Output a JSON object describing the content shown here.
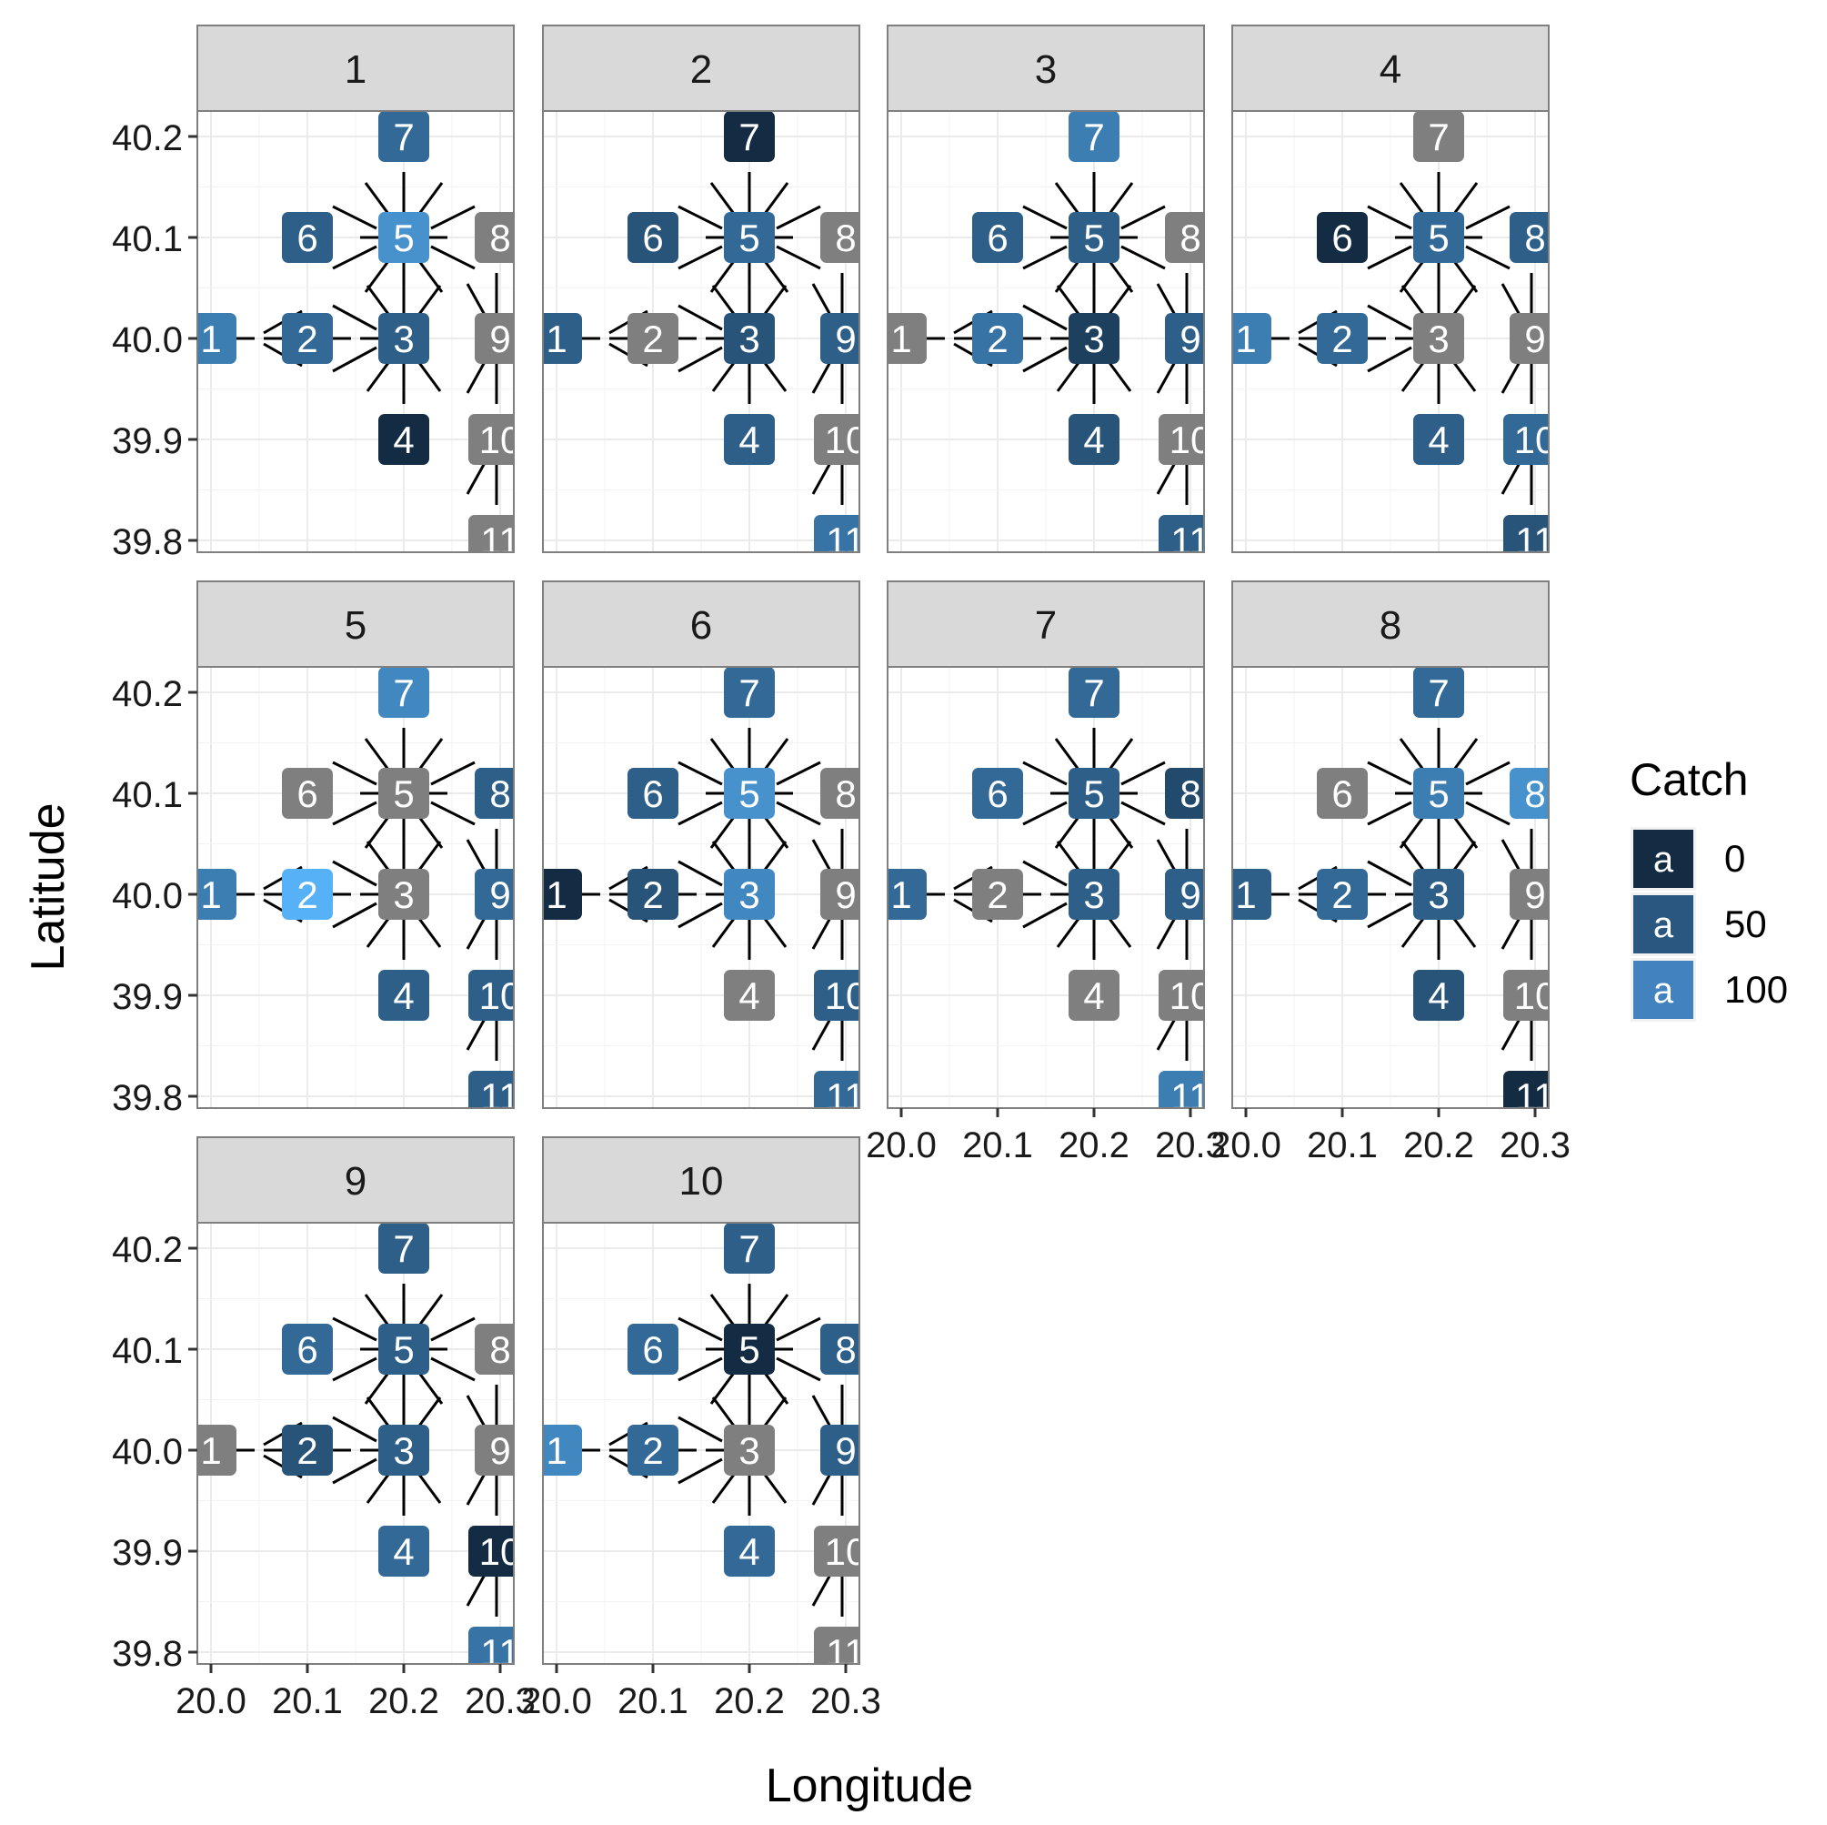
{
  "chart_data": {
    "type": "scatter",
    "subtype": "faceted label plot with network edges",
    "xlabel": "Longitude",
    "ylabel": "Latitude",
    "xlim": [
      19.985,
      20.315
    ],
    "ylim": [
      39.782,
      40.218
    ],
    "x_ticks": [
      20.0,
      20.1,
      20.2,
      20.3
    ],
    "x_tick_labels": [
      "20.0",
      "20.1",
      "20.2",
      "20.3"
    ],
    "y_ticks": [
      39.8,
      39.9,
      40.0,
      40.1,
      40.2
    ],
    "y_tick_labels": [
      "39.8",
      "39.9",
      "40.0",
      "40.1",
      "40.2"
    ],
    "grid": true,
    "legend": {
      "title": "Catch",
      "position": "right",
      "key_glyph": "a",
      "entries": [
        {
          "label": "0",
          "color": "#132b43"
        },
        {
          "label": "50",
          "color": "#2a5780"
        },
        {
          "label": "100",
          "color": "#4182bf"
        }
      ]
    },
    "colors": {
      "low": "#132b43",
      "high": "#56b1f7",
      "na": "#7f7f7f"
    },
    "nodes": [
      {
        "id": "1",
        "x": 20.0,
        "y": 40.0
      },
      {
        "id": "2",
        "x": 20.1,
        "y": 40.0
      },
      {
        "id": "3",
        "x": 20.2,
        "y": 40.0
      },
      {
        "id": "4",
        "x": 20.2,
        "y": 39.9
      },
      {
        "id": "5",
        "x": 20.2,
        "y": 40.1
      },
      {
        "id": "6",
        "x": 20.1,
        "y": 40.1
      },
      {
        "id": "7",
        "x": 20.2,
        "y": 40.2
      },
      {
        "id": "8",
        "x": 20.3,
        "y": 40.1
      },
      {
        "id": "9",
        "x": 20.3,
        "y": 40.0
      },
      {
        "id": "10",
        "x": 20.3,
        "y": 39.9
      },
      {
        "id": "11",
        "x": 20.3,
        "y": 39.8
      }
    ],
    "panels": [
      {
        "label": "1",
        "catch": [
          80,
          60,
          50,
          0,
          100,
          50,
          60,
          null,
          null,
          null,
          null
        ]
      },
      {
        "label": "2",
        "catch": [
          50,
          null,
          40,
          50,
          60,
          40,
          0,
          null,
          50,
          null,
          70
        ]
      },
      {
        "label": "3",
        "catch": [
          null,
          70,
          20,
          40,
          50,
          50,
          80,
          null,
          50,
          null,
          50
        ]
      },
      {
        "label": "4",
        "catch": [
          80,
          60,
          null,
          50,
          60,
          0,
          null,
          50,
          null,
          60,
          40
        ]
      },
      {
        "label": "5",
        "catch": [
          80,
          130,
          null,
          50,
          null,
          null,
          90,
          50,
          60,
          50,
          50
        ]
      },
      {
        "label": "6",
        "catch": [
          0,
          40,
          90,
          null,
          100,
          50,
          60,
          null,
          null,
          50,
          60
        ]
      },
      {
        "label": "7",
        "catch": [
          60,
          null,
          50,
          null,
          50,
          60,
          60,
          30,
          50,
          null,
          80
        ]
      },
      {
        "label": "8",
        "catch": [
          50,
          60,
          50,
          40,
          80,
          null,
          60,
          100,
          null,
          null,
          0
        ]
      },
      {
        "label": "9",
        "catch": [
          null,
          40,
          50,
          60,
          50,
          60,
          50,
          null,
          null,
          0,
          70
        ]
      },
      {
        "label": "10",
        "catch": [
          90,
          60,
          null,
          60,
          0,
          60,
          50,
          50,
          50,
          null,
          null
        ]
      }
    ]
  }
}
